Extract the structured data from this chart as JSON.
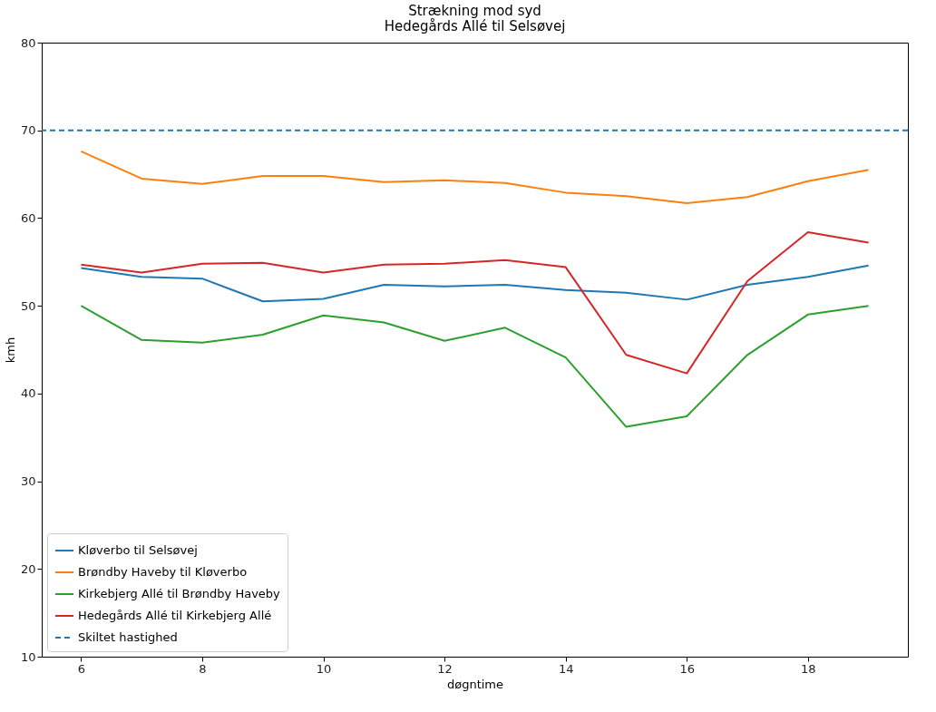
{
  "chart_data": {
    "type": "line",
    "title": "Strækning mod syd",
    "subtitle": "Hedegårds Allé til Selsøvej",
    "xlabel": "døgntime",
    "ylabel": "kmh",
    "x": [
      6,
      7,
      8,
      9,
      10,
      11,
      12,
      13,
      14,
      15,
      16,
      17,
      18,
      19
    ],
    "series": [
      {
        "name": "Kløverbo til Selsøvej",
        "color": "#1f77b4",
        "values": [
          54.3,
          53.3,
          53.1,
          50.5,
          50.8,
          52.4,
          52.2,
          52.4,
          51.8,
          51.5,
          50.7,
          52.4,
          53.3,
          54.6
        ]
      },
      {
        "name": "Brøndby Haveby til Kløverbo",
        "color": "#ff7f0e",
        "values": [
          67.6,
          64.5,
          63.9,
          64.8,
          64.8,
          64.1,
          64.3,
          64.0,
          62.9,
          62.5,
          61.7,
          62.4,
          64.2,
          65.5
        ]
      },
      {
        "name": "Kirkebjerg Allé til Brøndby Haveby",
        "color": "#2ca02c",
        "values": [
          50.0,
          46.1,
          45.8,
          46.7,
          48.9,
          48.1,
          46.0,
          47.5,
          44.1,
          36.2,
          37.4,
          44.4,
          49.0,
          50.0
        ]
      },
      {
        "name": "Hedegårds Allé til Kirkebjerg Allé",
        "color": "#d62728",
        "values": [
          54.7,
          53.8,
          54.8,
          54.9,
          53.8,
          54.7,
          54.8,
          55.2,
          54.4,
          44.4,
          42.3,
          52.8,
          58.4,
          57.2
        ]
      }
    ],
    "ref_lines": [
      {
        "axis": "y",
        "value": 70,
        "label": "Skiltet hastighed",
        "color": "#1f77b4",
        "line_style": "dashed"
      }
    ],
    "xlim": [
      5.35,
      19.65
    ],
    "ylim": [
      10,
      80
    ],
    "xticks": [
      6,
      8,
      10,
      12,
      14,
      16,
      18
    ],
    "yticks": [
      10,
      20,
      30,
      40,
      50,
      60,
      70,
      80
    ],
    "grid": false,
    "legend": "bottom left",
    "line_style": "solid",
    "marker": "none"
  }
}
